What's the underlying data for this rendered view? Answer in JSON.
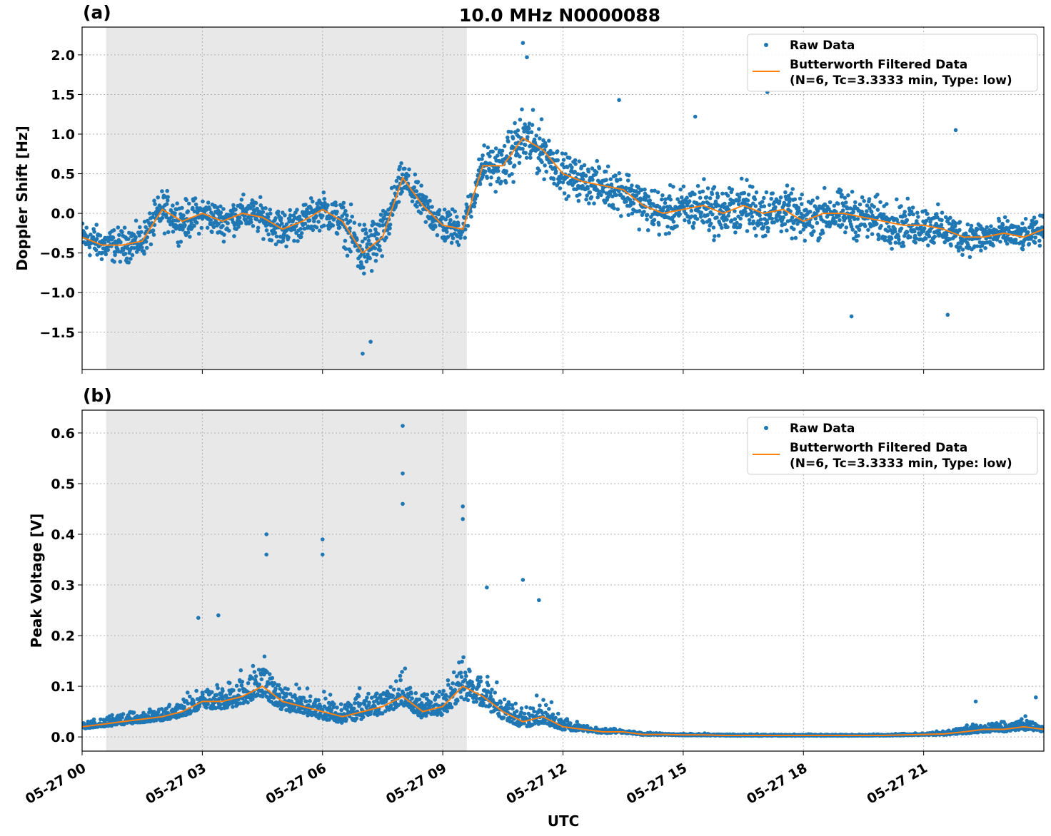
{
  "title": "10.0 MHz N0000088",
  "colors": {
    "raw": "#1f77b4",
    "filtered": "#ff7f0e",
    "shade": "#e8e8e8",
    "grid": "#b0b0b0"
  },
  "legend": {
    "raw": "Raw Data",
    "filtered_line1": "Butterworth Filtered Data",
    "filtered_line2": "(N=6, Tc=3.3333 min, Type: low)",
    "placement": "top-right"
  },
  "xlabel": "UTC",
  "x_ticks": [
    "05-27 00",
    "05-27 03",
    "05-27 06",
    "05-27 09",
    "05-27 12",
    "05-27 15",
    "05-27 18",
    "05-27 21"
  ],
  "chart_data": [
    {
      "panel": "(a)",
      "type": "scatter+line",
      "ylabel": "Doppler Shift [Hz]",
      "xunit": "hours UTC on 05-27",
      "xlim": [
        0,
        24
      ],
      "ylim": [
        -1.97,
        2.35
      ],
      "y_ticks": [
        "2.0",
        "1.5",
        "1.0",
        "0.5",
        "0.0",
        "−0.5",
        "−1.0",
        "−1.5"
      ],
      "y_tick_values": [
        2.0,
        1.5,
        1.0,
        0.5,
        0.0,
        -0.5,
        -1.0,
        -1.5
      ],
      "shaded_interval_hours": [
        0.6,
        9.6
      ],
      "grid": true,
      "filtered_x": [
        0,
        0.5,
        1,
        1.5,
        2,
        2.5,
        3,
        3.5,
        4,
        4.5,
        5,
        5.5,
        6,
        6.5,
        7,
        7.5,
        8,
        8.5,
        9,
        9.5,
        10,
        10.5,
        11,
        11.5,
        12,
        12.5,
        13,
        13.5,
        14,
        14.5,
        15,
        15.5,
        16,
        16.5,
        17,
        17.5,
        18,
        18.5,
        19,
        19.5,
        20,
        20.5,
        21,
        21.5,
        22,
        22.5,
        23,
        23.5,
        24
      ],
      "filtered_y": [
        -0.3,
        -0.4,
        -0.4,
        -0.35,
        0.05,
        -0.1,
        0.0,
        -0.1,
        0.0,
        -0.05,
        -0.2,
        -0.1,
        0.05,
        -0.1,
        -0.5,
        -0.3,
        0.45,
        0.1,
        -0.15,
        -0.2,
        0.6,
        0.6,
        0.95,
        0.8,
        0.5,
        0.4,
        0.35,
        0.3,
        0.1,
        0.0,
        0.05,
        0.1,
        0.0,
        0.1,
        0.0,
        0.05,
        -0.1,
        0.0,
        0.0,
        -0.05,
        -0.1,
        -0.15,
        -0.15,
        -0.2,
        -0.3,
        -0.3,
        -0.25,
        -0.3,
        -0.2
      ],
      "raw_spread": [
        0.3,
        0.3,
        0.3,
        0.3,
        0.35,
        0.35,
        0.3,
        0.3,
        0.3,
        0.3,
        0.35,
        0.3,
        0.3,
        0.35,
        0.55,
        0.45,
        0.3,
        0.3,
        0.35,
        0.3,
        0.35,
        0.4,
        0.55,
        0.45,
        0.35,
        0.35,
        0.35,
        0.4,
        0.4,
        0.4,
        0.4,
        0.45,
        0.45,
        0.45,
        0.45,
        0.4,
        0.4,
        0.4,
        0.4,
        0.4,
        0.4,
        0.4,
        0.35,
        0.35,
        0.3,
        0.3,
        0.25,
        0.25,
        0.25
      ],
      "raw_outliers": [
        [
          11.0,
          2.15
        ],
        [
          11.1,
          1.97
        ],
        [
          7.0,
          -1.77
        ],
        [
          7.2,
          -1.62
        ],
        [
          13.4,
          1.43
        ],
        [
          17.1,
          1.53
        ],
        [
          19.2,
          -1.3
        ],
        [
          21.6,
          -1.28
        ],
        [
          21.8,
          1.05
        ],
        [
          15.3,
          1.22
        ]
      ]
    },
    {
      "panel": "(b)",
      "type": "scatter+line",
      "ylabel": "Peak Voltage [V]",
      "xunit": "hours UTC on 05-27",
      "xlim": [
        0,
        24
      ],
      "ylim": [
        -0.028,
        0.645
      ],
      "y_ticks": [
        "0.6",
        "0.5",
        "0.4",
        "0.3",
        "0.2",
        "0.1",
        "0.0"
      ],
      "y_tick_values": [
        0.6,
        0.5,
        0.4,
        0.3,
        0.2,
        0.1,
        0.0
      ],
      "shaded_interval_hours": [
        0.6,
        9.6
      ],
      "grid": true,
      "filtered_x": [
        0,
        0.5,
        1,
        1.5,
        2,
        2.5,
        3,
        3.5,
        4,
        4.5,
        5,
        5.5,
        6,
        6.5,
        7,
        7.5,
        8,
        8.5,
        9,
        9.5,
        10,
        10.5,
        11,
        11.5,
        12,
        12.5,
        13,
        13.5,
        14,
        14.5,
        15,
        15.5,
        16,
        16.5,
        17,
        17.5,
        18,
        18.5,
        19,
        19.5,
        20,
        20.5,
        21,
        21.5,
        22,
        22.5,
        23,
        23.5,
        24
      ],
      "filtered_y": [
        0.02,
        0.025,
        0.03,
        0.035,
        0.04,
        0.05,
        0.07,
        0.07,
        0.08,
        0.1,
        0.07,
        0.06,
        0.05,
        0.04,
        0.05,
        0.06,
        0.08,
        0.05,
        0.06,
        0.1,
        0.08,
        0.05,
        0.03,
        0.04,
        0.02,
        0.015,
        0.01,
        0.01,
        0.005,
        0.005,
        0.004,
        0.004,
        0.003,
        0.003,
        0.003,
        0.003,
        0.003,
        0.003,
        0.003,
        0.003,
        0.003,
        0.004,
        0.005,
        0.006,
        0.01,
        0.015,
        0.015,
        0.02,
        0.015
      ],
      "raw_spread": [
        0.015,
        0.02,
        0.025,
        0.03,
        0.03,
        0.04,
        0.06,
        0.06,
        0.07,
        0.08,
        0.07,
        0.06,
        0.06,
        0.05,
        0.06,
        0.06,
        0.07,
        0.06,
        0.07,
        0.1,
        0.08,
        0.06,
        0.05,
        0.05,
        0.03,
        0.015,
        0.01,
        0.008,
        0.005,
        0.004,
        0.004,
        0.004,
        0.003,
        0.003,
        0.003,
        0.003,
        0.003,
        0.003,
        0.003,
        0.003,
        0.003,
        0.004,
        0.005,
        0.008,
        0.015,
        0.02,
        0.02,
        0.025,
        0.02
      ],
      "raw_outliers": [
        [
          4.6,
          0.4
        ],
        [
          4.6,
          0.36
        ],
        [
          6.0,
          0.39
        ],
        [
          6.0,
          0.36
        ],
        [
          8.0,
          0.614
        ],
        [
          8.0,
          0.52
        ],
        [
          8.0,
          0.46
        ],
        [
          9.5,
          0.455
        ],
        [
          9.5,
          0.43
        ],
        [
          10.1,
          0.295
        ],
        [
          11.0,
          0.31
        ],
        [
          11.4,
          0.27
        ],
        [
          3.4,
          0.24
        ],
        [
          2.9,
          0.235
        ],
        [
          22.3,
          0.07
        ],
        [
          23.8,
          0.078
        ]
      ]
    }
  ]
}
